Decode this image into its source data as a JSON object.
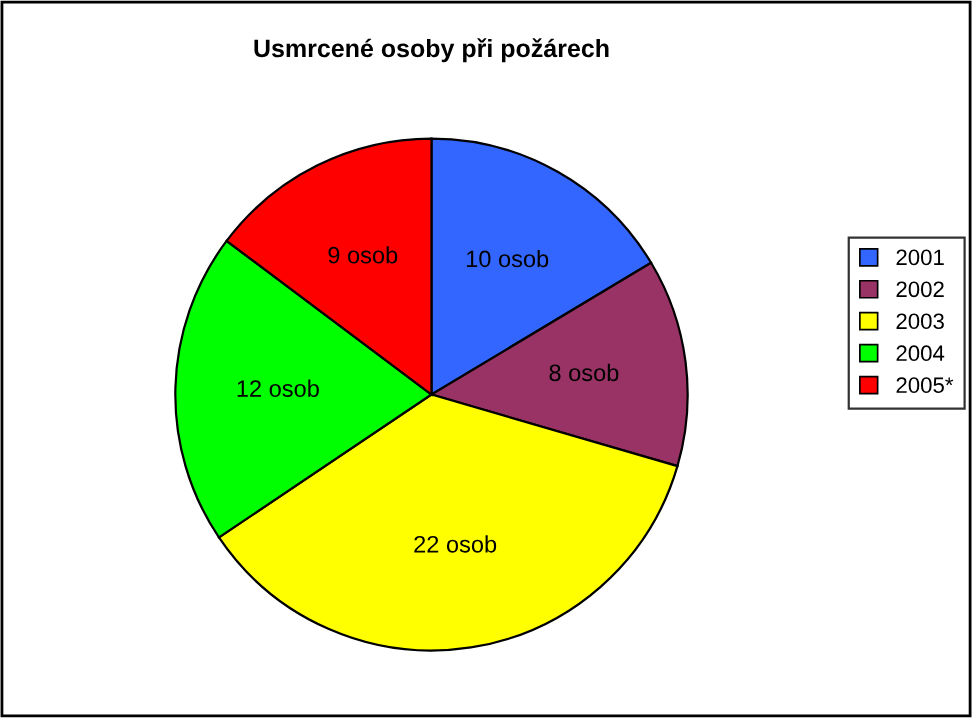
{
  "chart_data": {
    "type": "pie",
    "title": "Usmrcené osoby při požárech",
    "categories": [
      "2001",
      "2002",
      "2003",
      "2004",
      "2005*"
    ],
    "values": [
      10,
      8,
      22,
      12,
      9
    ],
    "value_labels": [
      "10 osob",
      "8 osob",
      "22 osob",
      "12 osob",
      "9 osob"
    ],
    "colors": [
      "#3366ff",
      "#993366",
      "#ffff00",
      "#00ff00",
      "#ff0000"
    ],
    "legend": "right"
  }
}
